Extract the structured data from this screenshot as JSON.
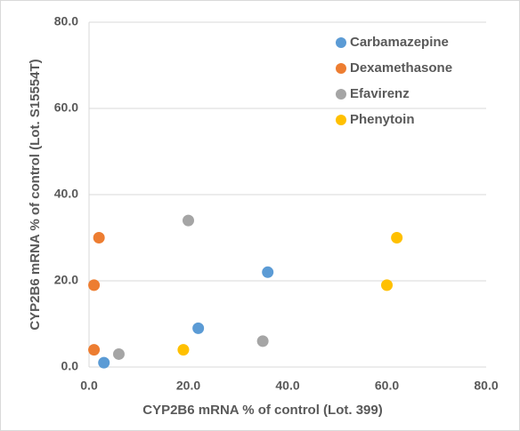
{
  "chart_data": {
    "type": "scatter",
    "xlabel": "CYP2B6 mRNA % of control (Lot. 399)",
    "ylabel": "CYP2B6 mRNA % of control (Lot. S15554T)",
    "xlim": [
      0,
      80
    ],
    "ylim": [
      0,
      80
    ],
    "xticks": [
      {
        "value": 0,
        "label": "0.0"
      },
      {
        "value": 20,
        "label": "20.0"
      },
      {
        "value": 40,
        "label": "40.0"
      },
      {
        "value": 60,
        "label": "60.0"
      },
      {
        "value": 80,
        "label": "80.0"
      }
    ],
    "yticks": [
      {
        "value": 0,
        "label": "0.0"
      },
      {
        "value": 20,
        "label": "20.0"
      },
      {
        "value": 40,
        "label": "40.0"
      },
      {
        "value": 60,
        "label": "60.0"
      },
      {
        "value": 80,
        "label": "80.0"
      }
    ],
    "grid": true,
    "legend": "upper right",
    "series": [
      {
        "name": "Carbamazepine",
        "color": "#5b9bd5",
        "x": [
          3,
          22,
          36
        ],
        "values": [
          1,
          9,
          22
        ]
      },
      {
        "name": "Dexamethasone",
        "color": "#ed7d31",
        "x": [
          2,
          1,
          1
        ],
        "values": [
          30,
          19,
          4
        ]
      },
      {
        "name": "Efavirenz",
        "color": "#a5a5a5",
        "x": [
          20,
          6,
          35
        ],
        "values": [
          34,
          3,
          6
        ]
      },
      {
        "name": "Phenytoin",
        "color": "#ffc000",
        "x": [
          62,
          60,
          19
        ],
        "values": [
          30,
          19,
          4
        ]
      }
    ]
  }
}
